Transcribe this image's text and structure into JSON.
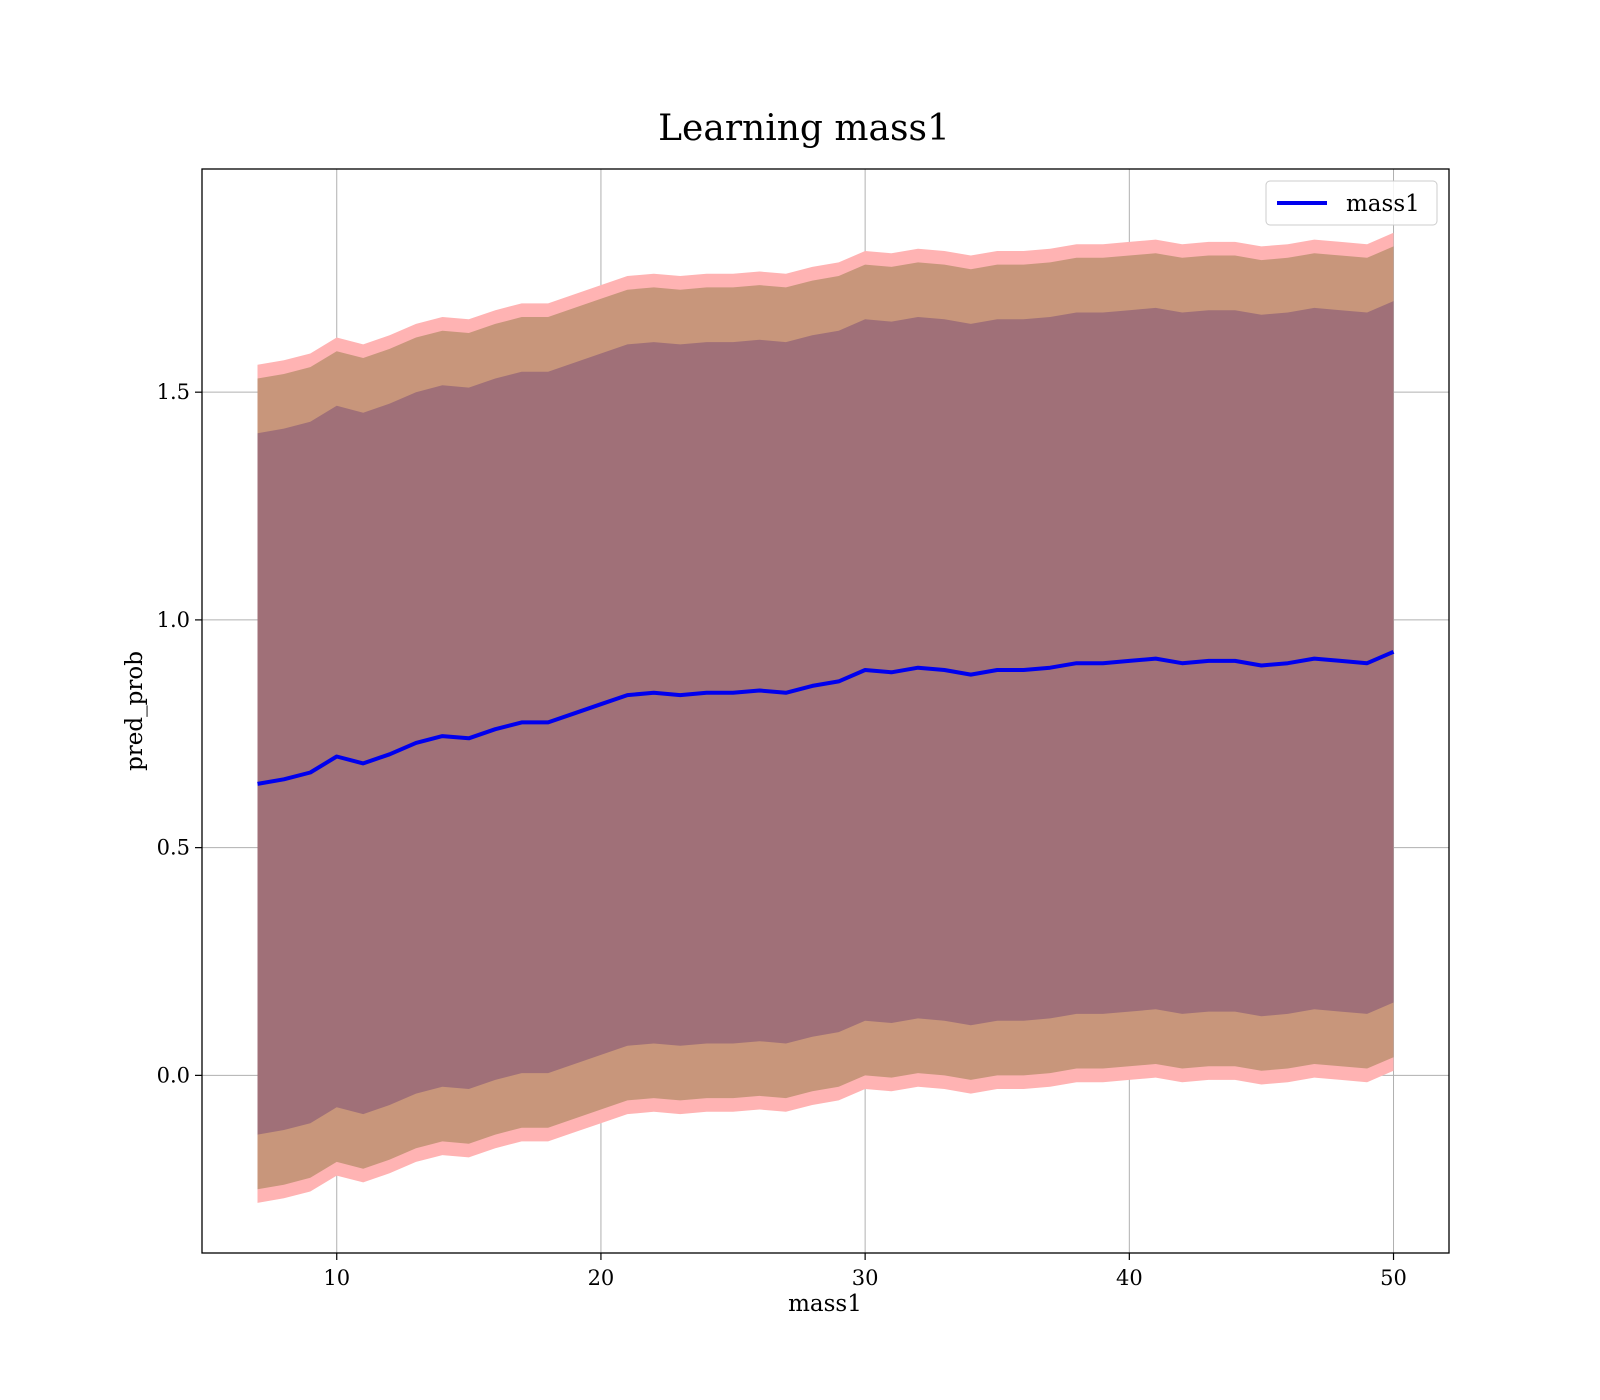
{
  "chart_data": {
    "type": "area",
    "title": "Learning mass1",
    "xlabel": "mass1",
    "ylabel": "pred_prob",
    "xlim": [
      4.9,
      52.1
    ],
    "ylim": [
      -0.39,
      1.99
    ],
    "grid": true,
    "legend_position": "top-right",
    "x_ticks": [
      10,
      20,
      30,
      40,
      50
    ],
    "y_ticks": [
      0.0,
      0.5,
      1.0,
      1.5
    ],
    "x_tick_labels": [
      "10",
      "20",
      "30",
      "40",
      "50"
    ],
    "y_tick_labels": [
      "0.0",
      "0.5",
      "1.0",
      "1.5"
    ],
    "colors": {
      "line": "#0000ee",
      "band_outer": "#ffb3b3",
      "band_middle": "#c8967b",
      "band_inner": "#a07078",
      "grid": "#b0b0b0"
    },
    "x": [
      7,
      8,
      9,
      10,
      11,
      12,
      13,
      14,
      15,
      16,
      17,
      18,
      19,
      20,
      21,
      22,
      23,
      24,
      25,
      26,
      27,
      28,
      29,
      30,
      31,
      32,
      33,
      34,
      35,
      36,
      37,
      38,
      39,
      40,
      41,
      42,
      43,
      44,
      45,
      46,
      47,
      48,
      49,
      50
    ],
    "series": [
      {
        "name": "mass1",
        "values": [
          0.64,
          0.65,
          0.665,
          0.7,
          0.685,
          0.705,
          0.73,
          0.745,
          0.74,
          0.76,
          0.775,
          0.775,
          0.795,
          0.815,
          0.835,
          0.84,
          0.835,
          0.84,
          0.84,
          0.845,
          0.84,
          0.855,
          0.865,
          0.89,
          0.885,
          0.895,
          0.89,
          0.88,
          0.89,
          0.89,
          0.895,
          0.905,
          0.905,
          0.91,
          0.915,
          0.905,
          0.91,
          0.91,
          0.9,
          0.905,
          0.915,
          0.91,
          0.905,
          0.93
        ]
      }
    ],
    "bands": [
      {
        "level": "outer",
        "half_width": 0.92
      },
      {
        "level": "middle",
        "half_width": 0.89
      },
      {
        "level": "inner",
        "half_width": 0.77
      }
    ]
  }
}
